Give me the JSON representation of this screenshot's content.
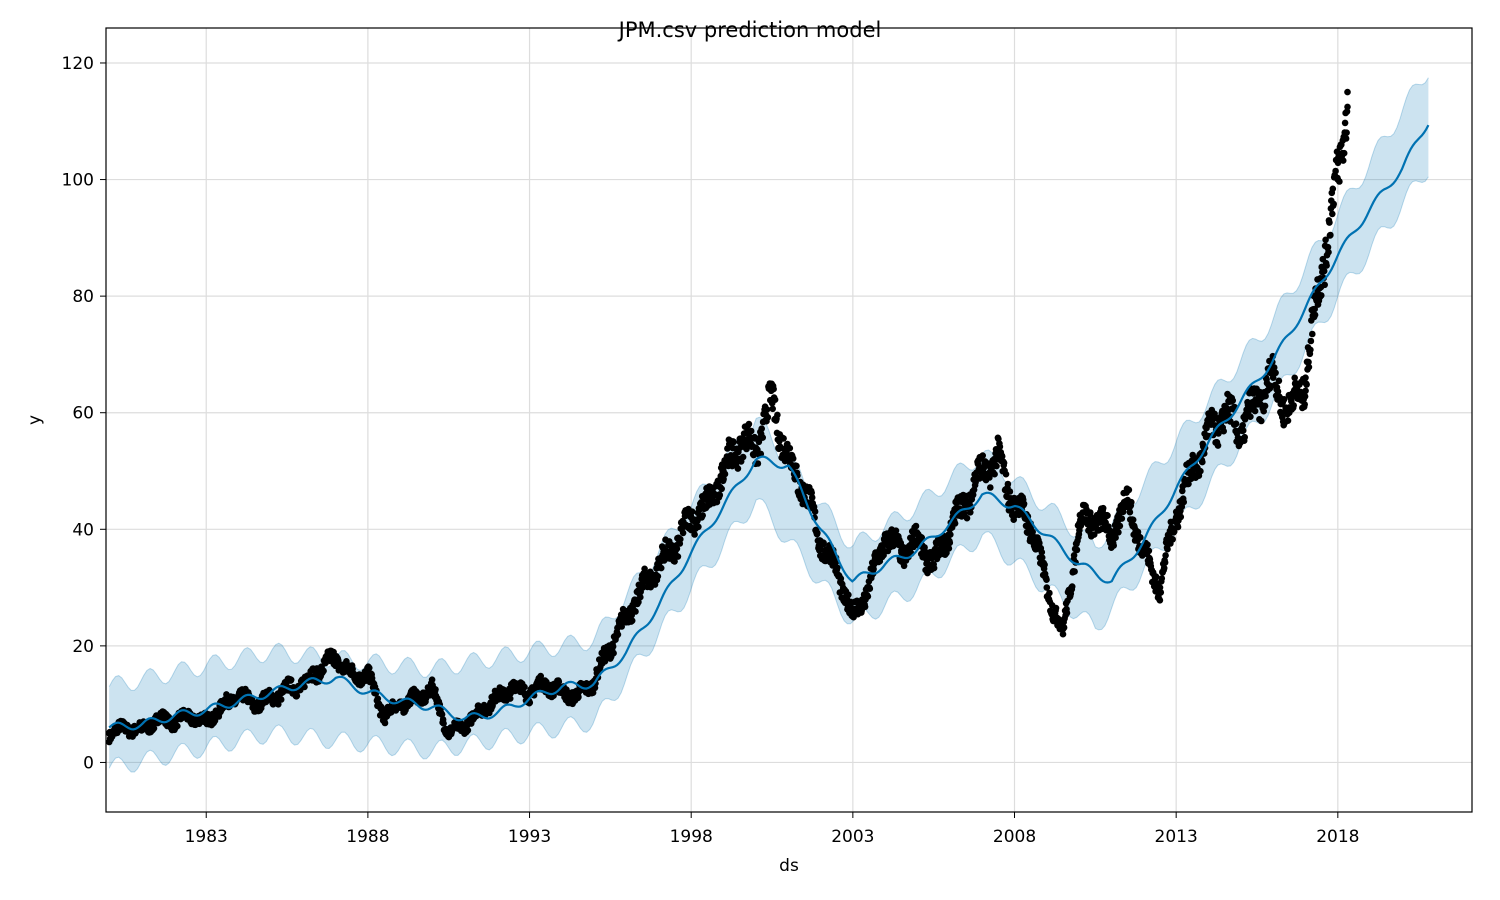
{
  "chart_data": {
    "type": "line",
    "title": "JPM.csv prediction model",
    "xlabel": "ds",
    "ylabel": "y",
    "xlim": [
      1979.9,
      2022.15
    ],
    "ylim": [
      -8.5,
      126
    ],
    "grid": true,
    "x_tick_labels": [
      "1983",
      "1988",
      "1993",
      "1998",
      "2003",
      "2008",
      "2013",
      "2018"
    ],
    "x_ticks": [
      1983,
      1988,
      1993,
      1998,
      2003,
      2008,
      2013,
      2018
    ],
    "y_tick_labels": [
      "0",
      "20",
      "40",
      "60",
      "80",
      "100",
      "120"
    ],
    "y_ticks": [
      0,
      20,
      40,
      60,
      80,
      100,
      120
    ],
    "colors": {
      "forecast_line": "#0072b2",
      "uncertainty_band": "#0072b2",
      "observations": "#000000",
      "grid": "#dddddd"
    },
    "series": [
      {
        "kind": "observations",
        "x": [
          1980.0,
          1980.5,
          1981.0,
          1981.5,
          1982.0,
          1982.5,
          1983.0,
          1983.5,
          1984.0,
          1984.5,
          1985.0,
          1985.5,
          1986.0,
          1986.5,
          1987.0,
          1987.5,
          1988.0,
          1988.5,
          1989.0,
          1989.5,
          1990.0,
          1990.5,
          1991.0,
          1991.5,
          1992.0,
          1992.5,
          1993.0,
          1993.5,
          1994.0,
          1994.5,
          1995.0,
          1995.5,
          1996.0,
          1996.5,
          1997.0,
          1997.5,
          1998.0,
          1998.5,
          1999.0,
          1999.5,
          2000.0,
          2000.5,
          2001.0,
          2001.5,
          2002.0,
          2002.5,
          2003.0,
          2003.5,
          2004.0,
          2004.5,
          2005.0,
          2005.5,
          2006.0,
          2006.5,
          2007.0,
          2007.5,
          2008.0,
          2008.5,
          2009.0,
          2009.5,
          2010.0,
          2010.5,
          2011.0,
          2011.5,
          2012.0,
          2012.5,
          2013.0,
          2013.5,
          2014.0,
          2014.5,
          2015.0,
          2015.5,
          2016.0,
          2016.5,
          2017.0,
          2017.5,
          2018.0,
          2018.3
        ],
        "y": [
          5.0,
          6.0,
          5.5,
          7.5,
          7.0,
          8.0,
          7.0,
          9.5,
          11.5,
          10.0,
          11.0,
          12.5,
          13.5,
          16.0,
          18.0,
          15.0,
          15.0,
          8.0,
          10.0,
          11.0,
          12.5,
          5.0,
          6.5,
          9.0,
          11.0,
          13.0,
          12.0,
          13.5,
          12.0,
          11.5,
          14.0,
          20.0,
          25.0,
          30.0,
          34.0,
          37.0,
          42.0,
          44.0,
          50.0,
          55.0,
          54.0,
          62.0,
          52.0,
          47.0,
          38.0,
          33.0,
          25.0,
          30.0,
          39.0,
          36.0,
          38.0,
          34.0,
          40.0,
          45.0,
          50.0,
          52.0,
          44.0,
          41.0,
          30.0,
          22.0,
          41.0,
          42.0,
          39.0,
          45.0,
          36.0,
          30.0,
          43.0,
          50.0,
          56.0,
          60.0,
          57.0,
          62.0,
          66.0,
          60.0,
          66.0,
          85.0,
          100.0,
          115.0
        ]
      },
      {
        "kind": "forecast",
        "x": [
          1980.0,
          1981.0,
          1982.0,
          1983.0,
          1984.0,
          1985.0,
          1986.0,
          1987.0,
          1988.0,
          1989.0,
          1990.0,
          1991.0,
          1992.0,
          1993.0,
          1994.0,
          1995.0,
          1996.0,
          1997.0,
          1998.0,
          1999.0,
          2000.0,
          2001.0,
          2002.0,
          2003.0,
          2004.0,
          2005.0,
          2006.0,
          2007.0,
          2008.0,
          2009.0,
          2010.0,
          2011.0,
          2012.0,
          2013.0,
          2014.0,
          2015.0,
          2016.0,
          2017.0,
          2018.0,
          2019.0,
          2020.0,
          2020.8
        ],
        "y": [
          6.0,
          6.5,
          8.0,
          9.0,
          10.5,
          12.0,
          13.5,
          14.5,
          12.0,
          10.5,
          9.5,
          7.5,
          8.5,
          11.0,
          13.0,
          13.5,
          19.0,
          27.0,
          36.0,
          44.0,
          52.0,
          51.0,
          40.0,
          31.0,
          34.0,
          36.5,
          41.0,
          46.0,
          44.0,
          39.0,
          34.0,
          31.0,
          38.0,
          47.0,
          55.0,
          62.0,
          69.0,
          78.0,
          87.0,
          95.0,
          102.0,
          110.0
        ]
      },
      {
        "kind": "uncertainty_interval",
        "x": [
          1980.0,
          1985.0,
          1990.0,
          1995.0,
          2000.0,
          2003.0,
          2005.0,
          2007.0,
          2010.5,
          2013.0,
          2016.0,
          2018.0,
          2020.8
        ],
        "lower": [
          -1.0,
          5.0,
          2.0,
          7.0,
          45.0,
          24.0,
          30.0,
          39.0,
          23.0,
          40.0,
          62.0,
          80.0,
          102.0
        ],
        "upper": [
          13.0,
          19.0,
          16.0,
          21.0,
          59.0,
          37.0,
          44.0,
          53.0,
          37.0,
          55.0,
          76.0,
          94.0,
          119.0
        ]
      }
    ]
  }
}
